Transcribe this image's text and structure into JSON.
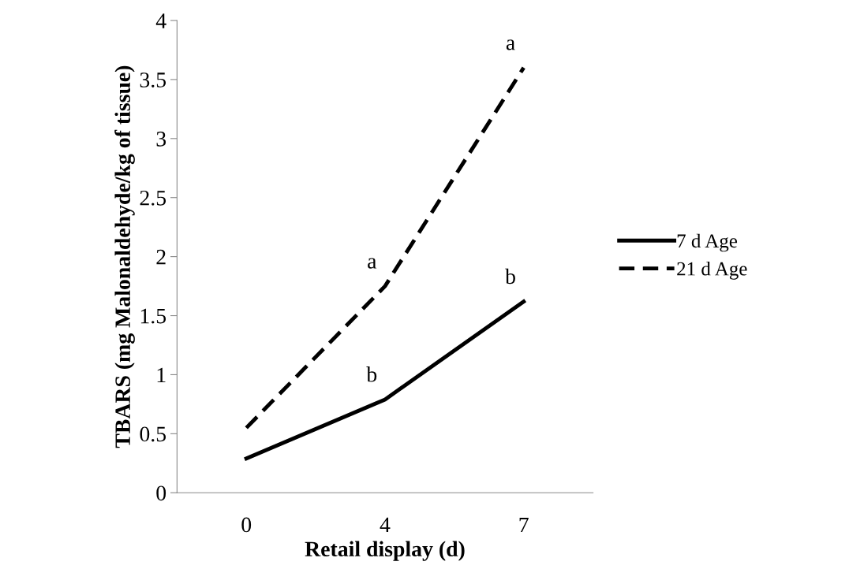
{
  "chart_data": {
    "type": "line",
    "xlabel": "Retail display (d)",
    "ylabel": "TBARS (mg Malonaldehyde/kg of tissue)",
    "categories": [
      "0",
      "4",
      "7"
    ],
    "series": [
      {
        "name": "7 d Age",
        "color": "#000000",
        "line_style": "solid",
        "values": [
          0.29,
          0.79,
          1.62
        ]
      },
      {
        "name": "21 d Age",
        "color": "#000000",
        "line_style": "dashed",
        "values": [
          0.55,
          1.75,
          3.6
        ]
      }
    ],
    "ylim": [
      0,
      4
    ],
    "yticks": [
      0,
      0.5,
      1,
      1.5,
      2,
      2.5,
      3,
      3.5,
      4
    ],
    "grid": false,
    "legend": "right",
    "marker": "none",
    "annotations": [
      {
        "text": "b",
        "x": "4",
        "y": 0.79
      },
      {
        "text": "b",
        "x": "7",
        "y": 1.62
      },
      {
        "text": "a",
        "x": "4",
        "y": 1.75
      },
      {
        "text": "a",
        "x": "7",
        "y": 3.6
      }
    ]
  }
}
